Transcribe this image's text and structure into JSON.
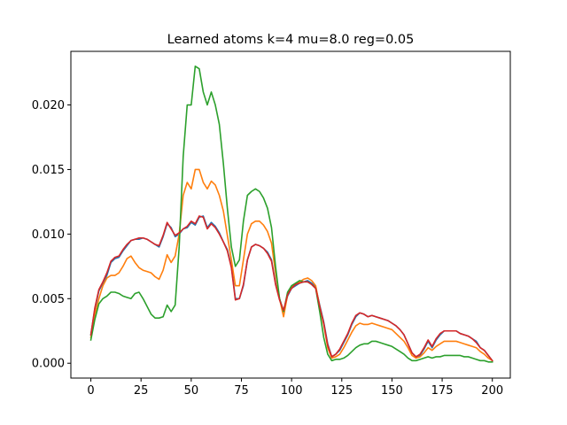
{
  "chart_data": {
    "type": "line",
    "title": "Learned atoms k=4 mu=8.0 reg=0.05",
    "xlabel": "",
    "ylabel": "",
    "xlim": [
      -9.95,
      208.95
    ],
    "ylim": [
      -0.00115,
      0.02415
    ],
    "x_ticks": [
      0,
      25,
      50,
      75,
      100,
      125,
      150,
      175,
      200
    ],
    "x_tick_labels": [
      "0",
      "25",
      "50",
      "75",
      "100",
      "125",
      "150",
      "175",
      "200"
    ],
    "y_ticks": [
      0.0,
      0.005,
      0.01,
      0.015,
      0.02
    ],
    "y_tick_labels": [
      "0.000",
      "0.005",
      "0.010",
      "0.015",
      "0.020"
    ],
    "grid": false,
    "legend": false,
    "x": [
      0,
      2,
      4,
      6,
      8,
      10,
      12,
      14,
      16,
      18,
      20,
      22,
      24,
      26,
      28,
      30,
      32,
      34,
      36,
      38,
      40,
      42,
      44,
      46,
      48,
      50,
      52,
      54,
      56,
      58,
      60,
      62,
      64,
      66,
      68,
      70,
      72,
      74,
      76,
      78,
      80,
      82,
      84,
      86,
      88,
      90,
      92,
      94,
      96,
      98,
      100,
      102,
      104,
      106,
      108,
      110,
      112,
      114,
      116,
      118,
      120,
      122,
      124,
      126,
      128,
      130,
      132,
      134,
      136,
      138,
      140,
      142,
      144,
      146,
      148,
      150,
      152,
      154,
      156,
      158,
      160,
      162,
      164,
      166,
      168,
      170,
      172,
      174,
      176,
      178,
      180,
      182,
      184,
      186,
      188,
      190,
      192,
      194,
      196,
      198,
      200
    ],
    "series": [
      {
        "color": "#1f77b4",
        "values": [
          0.0022,
          0.0042,
          0.0056,
          0.0062,
          0.0068,
          0.0078,
          0.0081,
          0.0082,
          0.0087,
          0.0091,
          0.0095,
          0.0096,
          0.0096,
          0.0097,
          0.0096,
          0.0094,
          0.0092,
          0.009,
          0.0098,
          0.0108,
          0.0105,
          0.0098,
          0.01,
          0.0104,
          0.0105,
          0.0109,
          0.0107,
          0.0113,
          0.0114,
          0.0105,
          0.0109,
          0.0106,
          0.0101,
          0.0094,
          0.0088,
          0.0075,
          0.005,
          0.005,
          0.006,
          0.008,
          0.009,
          0.0092,
          0.0091,
          0.0089,
          0.0086,
          0.008,
          0.0062,
          0.005,
          0.004,
          0.0052,
          0.0058,
          0.006,
          0.0062,
          0.0063,
          0.0064,
          0.0062,
          0.0059,
          0.0045,
          0.0032,
          0.0015,
          0.0005,
          0.0007,
          0.001,
          0.0016,
          0.0022,
          0.003,
          0.0036,
          0.0039,
          0.0038,
          0.0036,
          0.0037,
          0.0036,
          0.0035,
          0.0034,
          0.0033,
          0.0031,
          0.0029,
          0.0026,
          0.0022,
          0.0015,
          0.0008,
          0.0005,
          0.0006,
          0.0011,
          0.0017,
          0.0012,
          0.0018,
          0.0022,
          0.0025,
          0.0025,
          0.0025,
          0.0025,
          0.0023,
          0.0022,
          0.0021,
          0.0019,
          0.0017,
          0.0012,
          0.001,
          0.0006,
          0.0002
        ]
      },
      {
        "color": "#ff7f0e",
        "values": [
          0.002,
          0.0038,
          0.005,
          0.006,
          0.0066,
          0.0068,
          0.0068,
          0.007,
          0.0075,
          0.0081,
          0.0083,
          0.0078,
          0.0074,
          0.0072,
          0.0071,
          0.007,
          0.0067,
          0.0065,
          0.0072,
          0.0084,
          0.0078,
          0.0083,
          0.01,
          0.013,
          0.014,
          0.0135,
          0.015,
          0.015,
          0.014,
          0.0135,
          0.0141,
          0.0138,
          0.013,
          0.0118,
          0.0099,
          0.008,
          0.006,
          0.006,
          0.008,
          0.01,
          0.0108,
          0.011,
          0.011,
          0.0107,
          0.0102,
          0.0093,
          0.007,
          0.005,
          0.0036,
          0.0053,
          0.0059,
          0.0061,
          0.0063,
          0.0065,
          0.0066,
          0.0064,
          0.006,
          0.0044,
          0.003,
          0.0012,
          0.0004,
          0.0005,
          0.0007,
          0.0012,
          0.0018,
          0.0024,
          0.0029,
          0.0031,
          0.003,
          0.003,
          0.0031,
          0.003,
          0.0029,
          0.0028,
          0.0027,
          0.0026,
          0.0023,
          0.002,
          0.0017,
          0.0012,
          0.0006,
          0.0004,
          0.0005,
          0.0008,
          0.0012,
          0.001,
          0.0013,
          0.0015,
          0.0017,
          0.0017,
          0.0017,
          0.0017,
          0.0016,
          0.0015,
          0.0014,
          0.0013,
          0.0012,
          0.0009,
          0.0007,
          0.0004,
          0.0002
        ]
      },
      {
        "color": "#2ca02c",
        "values": [
          0.0018,
          0.0034,
          0.0046,
          0.005,
          0.0052,
          0.0055,
          0.0055,
          0.0054,
          0.0052,
          0.0051,
          0.005,
          0.0054,
          0.0055,
          0.005,
          0.0044,
          0.0038,
          0.0035,
          0.0035,
          0.0036,
          0.0045,
          0.004,
          0.0045,
          0.009,
          0.016,
          0.02,
          0.02,
          0.023,
          0.0228,
          0.021,
          0.02,
          0.021,
          0.02,
          0.0185,
          0.0155,
          0.012,
          0.009,
          0.0075,
          0.008,
          0.011,
          0.013,
          0.0133,
          0.0135,
          0.0133,
          0.0128,
          0.012,
          0.0105,
          0.0075,
          0.005,
          0.004,
          0.0055,
          0.006,
          0.0062,
          0.0064,
          0.0063,
          0.0063,
          0.0061,
          0.0058,
          0.004,
          0.002,
          0.0007,
          0.0002,
          0.0003,
          0.0003,
          0.0004,
          0.0006,
          0.0009,
          0.0012,
          0.0014,
          0.0015,
          0.0015,
          0.0017,
          0.0017,
          0.0016,
          0.0015,
          0.0014,
          0.0013,
          0.0011,
          0.0009,
          0.0007,
          0.0004,
          0.0002,
          0.0002,
          0.0003,
          0.0004,
          0.0005,
          0.0004,
          0.0005,
          0.0005,
          0.0006,
          0.0006,
          0.0006,
          0.0006,
          0.0006,
          0.0005,
          0.0005,
          0.0004,
          0.0003,
          0.0002,
          0.0002,
          0.0001,
          0.0001
        ]
      },
      {
        "color": "#d62728",
        "values": [
          0.0022,
          0.0043,
          0.0057,
          0.0063,
          0.007,
          0.0079,
          0.0082,
          0.0083,
          0.0088,
          0.0092,
          0.0095,
          0.0096,
          0.0097,
          0.0097,
          0.0096,
          0.0094,
          0.0092,
          0.0091,
          0.0099,
          0.0109,
          0.0104,
          0.0099,
          0.0101,
          0.0104,
          0.0106,
          0.011,
          0.0108,
          0.0114,
          0.0113,
          0.0104,
          0.0108,
          0.0105,
          0.01,
          0.0094,
          0.0087,
          0.0074,
          0.0049,
          0.005,
          0.0061,
          0.008,
          0.009,
          0.0092,
          0.0091,
          0.0089,
          0.0085,
          0.0079,
          0.0061,
          0.0049,
          0.0041,
          0.0053,
          0.0058,
          0.0061,
          0.0062,
          0.0063,
          0.0063,
          0.0061,
          0.0058,
          0.0044,
          0.0031,
          0.0014,
          0.0005,
          0.0007,
          0.0011,
          0.0017,
          0.0023,
          0.0031,
          0.0037,
          0.0039,
          0.0038,
          0.0036,
          0.0037,
          0.0036,
          0.0035,
          0.0034,
          0.0033,
          0.0031,
          0.0029,
          0.0026,
          0.0022,
          0.0015,
          0.0008,
          0.0005,
          0.0007,
          0.0012,
          0.0018,
          0.0013,
          0.0019,
          0.0023,
          0.0025,
          0.0025,
          0.0025,
          0.0025,
          0.0023,
          0.0022,
          0.0021,
          0.0019,
          0.0016,
          0.0012,
          0.001,
          0.0006,
          0.0002
        ]
      }
    ]
  }
}
